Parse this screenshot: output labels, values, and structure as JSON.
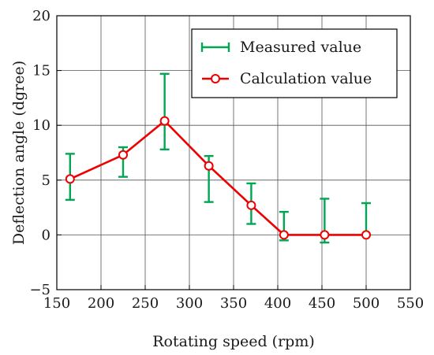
{
  "chart_data": {
    "type": "line",
    "xlabel": "Rotating speed (rpm)",
    "ylabel": "Deflection angle (dgree)",
    "xlim": [
      150,
      550
    ],
    "ylim": [
      -5,
      20
    ],
    "xticks": [
      "150",
      "200",
      "250",
      "300",
      "350",
      "400",
      "450",
      "500",
      "550"
    ],
    "yticks": [
      "−5",
      "0",
      "5",
      "10",
      "15",
      "20"
    ],
    "grid": true,
    "legend_position": "top-right",
    "series": [
      {
        "name": "Measured value",
        "kind": "errorbar",
        "color": "#00a651",
        "points": [
          {
            "x": 165,
            "low": 3.2,
            "high": 7.4
          },
          {
            "x": 225,
            "low": 5.3,
            "high": 8.0
          },
          {
            "x": 272,
            "low": 7.8,
            "high": 14.7
          },
          {
            "x": 322,
            "low": 3.0,
            "high": 7.2
          },
          {
            "x": 370,
            "low": 1.0,
            "high": 4.7
          },
          {
            "x": 407,
            "low": -0.5,
            "high": 2.1
          },
          {
            "x": 453,
            "low": -0.7,
            "high": 3.3
          },
          {
            "x": 500,
            "low": 0.0,
            "high": 2.9
          }
        ]
      },
      {
        "name": "Calculation value",
        "kind": "line-marker",
        "color": "#ee0000",
        "x": [
          165,
          225,
          272,
          322,
          370,
          407,
          453,
          500
        ],
        "y": [
          5.1,
          7.3,
          10.4,
          6.3,
          2.7,
          0.0,
          0.0,
          0.0
        ]
      }
    ]
  }
}
